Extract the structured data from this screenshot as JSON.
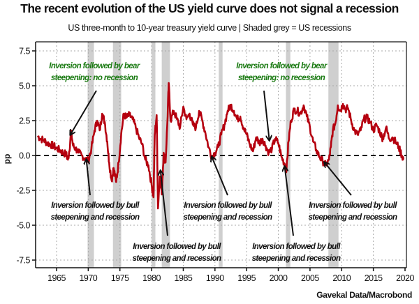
{
  "chart_data": {
    "type": "line",
    "title": "The recent evolution of the US yield curve does not signal a recession",
    "subtitle": "US three-month to 10-year treasury yield curve | Shaded grey = US recessions",
    "xlabel": "",
    "ylabel": "pp",
    "source": "Gavekal Data/Macrobond",
    "xlim": [
      1961.7,
      2020.2
    ],
    "ylim": [
      -8.0,
      8.2
    ],
    "x_ticks": [
      1965,
      1970,
      1975,
      1980,
      1985,
      1990,
      1995,
      2000,
      2005,
      2010,
      2015,
      2020
    ],
    "y_ticks": [
      {
        "value": 7.5,
        "label": "7.5"
      },
      {
        "value": 5.0,
        "label": "5.0"
      },
      {
        "value": 2.5,
        "label": "2.5"
      },
      {
        "value": 0.0,
        "label": "0.0"
      },
      {
        "value": -2.5,
        "label": "-2.5"
      },
      {
        "value": -5.0,
        "label": "-5.0"
      },
      {
        "value": -7.5,
        "label": "-7.5"
      }
    ],
    "grid": true,
    "zero_line": "dashed",
    "line_color": "#b5000f",
    "recession_color": "#cfcfcf",
    "recessions": [
      [
        1969.9,
        1970.9
      ],
      [
        1973.9,
        1975.2
      ],
      [
        1980.0,
        1980.6
      ],
      [
        1981.6,
        1982.9
      ],
      [
        1990.6,
        1991.2
      ],
      [
        2001.2,
        2001.9
      ],
      [
        2007.9,
        2009.5
      ]
    ],
    "series": [
      {
        "name": "US 3m-10y yield curve",
        "points": [
          [
            1962.0,
            1.4
          ],
          [
            1962.5,
            1.2
          ],
          [
            1963.0,
            1.1
          ],
          [
            1963.5,
            0.9
          ],
          [
            1964.0,
            0.8
          ],
          [
            1964.5,
            0.7
          ],
          [
            1965.0,
            0.5
          ],
          [
            1965.5,
            0.4
          ],
          [
            1966.0,
            0.2
          ],
          [
            1966.5,
            0.1
          ],
          [
            1966.8,
            -0.3
          ],
          [
            1967.0,
            0.3
          ],
          [
            1967.3,
            1.7
          ],
          [
            1967.6,
            0.7
          ],
          [
            1968.0,
            0.5
          ],
          [
            1968.5,
            0.2
          ],
          [
            1969.0,
            0.0
          ],
          [
            1969.5,
            -0.2
          ],
          [
            1970.0,
            -0.4
          ],
          [
            1970.5,
            0.5
          ],
          [
            1971.0,
            1.8
          ],
          [
            1971.4,
            2.5
          ],
          [
            1971.8,
            1.8
          ],
          [
            1972.2,
            3.0
          ],
          [
            1972.6,
            2.4
          ],
          [
            1973.0,
            1.0
          ],
          [
            1973.3,
            -0.5
          ],
          [
            1973.7,
            -1.8
          ],
          [
            1974.0,
            -0.9
          ],
          [
            1974.4,
            -1.9
          ],
          [
            1974.8,
            -0.5
          ],
          [
            1975.2,
            1.5
          ],
          [
            1975.6,
            3.0
          ],
          [
            1976.0,
            2.7
          ],
          [
            1976.5,
            2.9
          ],
          [
            1977.0,
            2.6
          ],
          [
            1977.5,
            2.0
          ],
          [
            1978.0,
            1.3
          ],
          [
            1978.5,
            0.8
          ],
          [
            1979.0,
            -0.3
          ],
          [
            1979.5,
            -0.7
          ],
          [
            1980.0,
            -2.1
          ],
          [
            1980.3,
            -3.0
          ],
          [
            1980.5,
            1.5
          ],
          [
            1980.8,
            2.9
          ],
          [
            1981.0,
            -3.8
          ],
          [
            1981.3,
            -1.5
          ],
          [
            1981.6,
            -2.8
          ],
          [
            1981.9,
            0.2
          ],
          [
            1982.2,
            -0.5
          ],
          [
            1982.5,
            2.5
          ],
          [
            1982.7,
            5.2
          ],
          [
            1983.0,
            2.5
          ],
          [
            1983.5,
            3.2
          ],
          [
            1984.0,
            2.6
          ],
          [
            1984.5,
            2.0
          ],
          [
            1985.0,
            3.5
          ],
          [
            1985.5,
            2.6
          ],
          [
            1986.0,
            3.0
          ],
          [
            1986.5,
            2.2
          ],
          [
            1987.0,
            2.0
          ],
          [
            1987.5,
            3.2
          ],
          [
            1988.0,
            2.5
          ],
          [
            1988.5,
            1.6
          ],
          [
            1989.0,
            0.6
          ],
          [
            1989.5,
            -0.1
          ],
          [
            1990.0,
            0.2
          ],
          [
            1990.5,
            0.6
          ],
          [
            1991.0,
            1.5
          ],
          [
            1991.5,
            2.2
          ],
          [
            1992.0,
            3.2
          ],
          [
            1992.5,
            3.6
          ],
          [
            1993.0,
            3.2
          ],
          [
            1993.5,
            2.6
          ],
          [
            1994.0,
            2.8
          ],
          [
            1994.5,
            2.0
          ],
          [
            1995.0,
            1.5
          ],
          [
            1995.5,
            0.8
          ],
          [
            1996.0,
            0.3
          ],
          [
            1996.5,
            1.3
          ],
          [
            1997.0,
            0.9
          ],
          [
            1997.5,
            1.2
          ],
          [
            1998.0,
            0.7
          ],
          [
            1998.5,
            0.2
          ],
          [
            1999.0,
            0.5
          ],
          [
            1999.5,
            1.2
          ],
          [
            2000.0,
            0.9
          ],
          [
            2000.5,
            -0.1
          ],
          [
            2001.0,
            -0.6
          ],
          [
            2001.3,
            -1.0
          ],
          [
            2001.6,
            1.0
          ],
          [
            2002.0,
            2.5
          ],
          [
            2002.5,
            3.3
          ],
          [
            2003.0,
            3.2
          ],
          [
            2003.5,
            3.0
          ],
          [
            2004.0,
            3.6
          ],
          [
            2004.5,
            2.8
          ],
          [
            2005.0,
            2.0
          ],
          [
            2005.5,
            1.0
          ],
          [
            2006.0,
            0.4
          ],
          [
            2006.5,
            -0.1
          ],
          [
            2007.0,
            -0.4
          ],
          [
            2007.5,
            -0.7
          ],
          [
            2008.0,
            -0.3
          ],
          [
            2008.3,
            0.6
          ],
          [
            2008.6,
            1.8
          ],
          [
            2009.0,
            2.3
          ],
          [
            2009.4,
            3.6
          ],
          [
            2009.8,
            3.2
          ],
          [
            2010.2,
            3.7
          ],
          [
            2010.6,
            3.3
          ],
          [
            2011.0,
            3.4
          ],
          [
            2011.5,
            2.5
          ],
          [
            2012.0,
            1.8
          ],
          [
            2012.5,
            1.5
          ],
          [
            2013.0,
            1.8
          ],
          [
            2013.5,
            2.6
          ],
          [
            2014.0,
            2.7
          ],
          [
            2014.5,
            2.4
          ],
          [
            2015.0,
            1.8
          ],
          [
            2015.5,
            2.2
          ],
          [
            2016.0,
            1.7
          ],
          [
            2016.5,
            1.2
          ],
          [
            2017.0,
            2.0
          ],
          [
            2017.5,
            1.2
          ],
          [
            2018.0,
            1.3
          ],
          [
            2018.5,
            1.0
          ],
          [
            2019.0,
            0.6
          ],
          [
            2019.5,
            0.0
          ],
          [
            2019.8,
            -0.3
          ]
        ]
      }
    ],
    "annotations": [
      {
        "text_lines": [
          "Inversion followed by bear",
          "steepening: no recession"
        ],
        "color": "#1a7a12",
        "type": "no-recession",
        "points_to_year": 1967.3,
        "points_to_value": 1.7
      },
      {
        "text_lines": [
          "Inversion followed by bear",
          "steepening: no recession"
        ],
        "color": "#1a7a12",
        "type": "no-recession",
        "points_to_year": 1998.8,
        "points_to_value": 1.3
      },
      {
        "text_lines": [
          "Inversion followed by bull",
          "steepening and recession"
        ],
        "color": "#111111",
        "type": "recession",
        "points_to_year": 1969.7,
        "points_to_value": -0.5
      },
      {
        "text_lines": [
          "Inversion followed by bull",
          "steepening and recession"
        ],
        "color": "#111111",
        "type": "recession",
        "points_to_year": 1981.4,
        "points_to_value": -1.3
      },
      {
        "text_lines": [
          "Inversion followed by bull",
          "steepening and recession"
        ],
        "color": "#111111",
        "type": "recession",
        "points_to_year": 1989.5,
        "points_to_value": -0.3
      },
      {
        "text_lines": [
          "Inversion followed by bull",
          "steepening and recession"
        ],
        "color": "#111111",
        "type": "recession",
        "points_to_year": 2001.0,
        "points_to_value": -1.0
      },
      {
        "text_lines": [
          "Inversion followed by bull",
          "steepening and recession"
        ],
        "color": "#111111",
        "type": "recession",
        "points_to_year": 2007.3,
        "points_to_value": -0.7
      }
    ]
  }
}
